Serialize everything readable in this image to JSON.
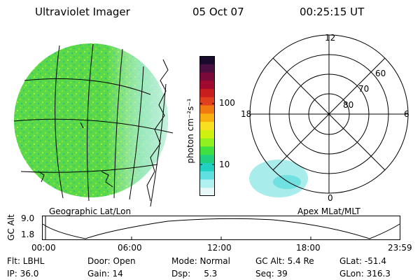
{
  "header": {
    "title": "Ultraviolet Imager",
    "date": "05 Oct 07",
    "time": "00:25:15 UT"
  },
  "colorbar": {
    "unit_label": "photon cm⁻²s⁻¹",
    "ticks": [
      "100",
      "10"
    ],
    "colors": [
      "#1a0a2e",
      "#4a1040",
      "#7a0a3a",
      "#a00a30",
      "#c81e1e",
      "#e04020",
      "#f07a10",
      "#f8b010",
      "#f8e020",
      "#d0f010",
      "#90f020",
      "#40e040",
      "#20d080",
      "#20d0c0",
      "#60e0e0",
      "#b0f0f0",
      "#e8f8f8"
    ]
  },
  "polar": {
    "hour_labels": {
      "top": "12",
      "left": "18",
      "right": "6",
      "bottom": "0"
    },
    "lat_labels": [
      "60",
      "70",
      "80"
    ]
  },
  "panel_labels": {
    "left": "Geographic Lat/Lon",
    "right": "Apex MLat/MLT"
  },
  "altitude_plot": {
    "ylabel": "GC Alt",
    "yticks": [
      "9.0",
      "1.8"
    ],
    "xticks": [
      "00:00",
      "06:00",
      "12:00",
      "18:00",
      "23:59"
    ]
  },
  "info": {
    "flt": "Flt: LBHL",
    "door": "Door: Open",
    "mode": "Mode: Normal",
    "gc_alt": "GC Alt: 5.4 Re",
    "glat": "GLat: -51.4",
    "ip": "IP: 36.0",
    "gain": "Gain: 14",
    "dsp": "Dsp:     5.3",
    "seq": "Seq: 39",
    "glon": "GLon: 316.3"
  }
}
